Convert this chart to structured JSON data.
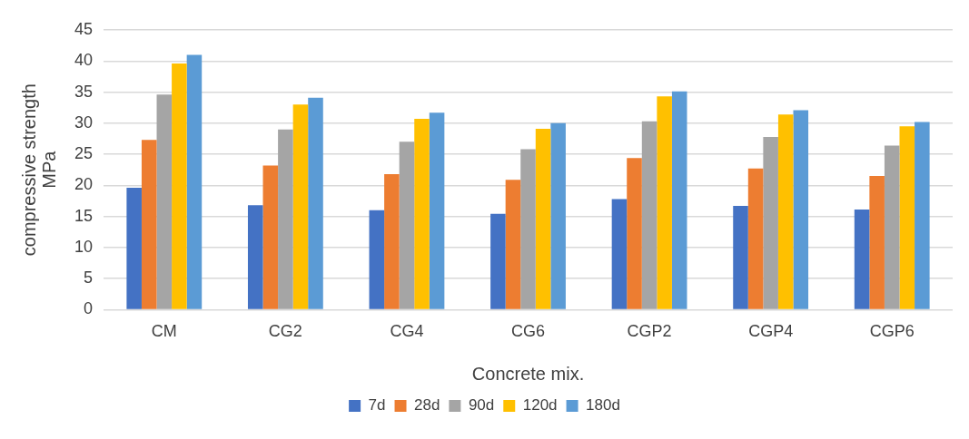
{
  "chart_data": {
    "type": "bar",
    "xlabel": "Concrete mix.",
    "ylabel": "compressive strength MPa",
    "categories": [
      "CM",
      "CG2",
      "CG4",
      "CG6",
      "CGP2",
      "CGP4",
      "CGP6"
    ],
    "series": [
      {
        "name": "7d",
        "color": "#4472c4",
        "values": [
          19.6,
          16.8,
          16.0,
          15.4,
          17.8,
          16.7,
          16.1
        ]
      },
      {
        "name": "28d",
        "color": "#ed7d31",
        "values": [
          27.3,
          23.2,
          21.8,
          20.9,
          24.4,
          22.7,
          21.5
        ]
      },
      {
        "name": "90d",
        "color": "#a5a5a5",
        "values": [
          34.6,
          29.0,
          27.0,
          25.8,
          30.3,
          27.8,
          26.4
        ]
      },
      {
        "name": "120d",
        "color": "#ffc000",
        "values": [
          39.6,
          33.0,
          30.7,
          29.1,
          34.3,
          31.4,
          29.5
        ]
      },
      {
        "name": "180d",
        "color": "#5b9bd5",
        "values": [
          41.0,
          34.1,
          31.7,
          30.0,
          35.1,
          32.1,
          30.2
        ]
      }
    ],
    "ylim": [
      0,
      45
    ],
    "yticks": [
      0,
      5,
      10,
      15,
      20,
      25,
      30,
      35,
      40,
      45
    ],
    "grid": "y",
    "legend": "bottom"
  }
}
